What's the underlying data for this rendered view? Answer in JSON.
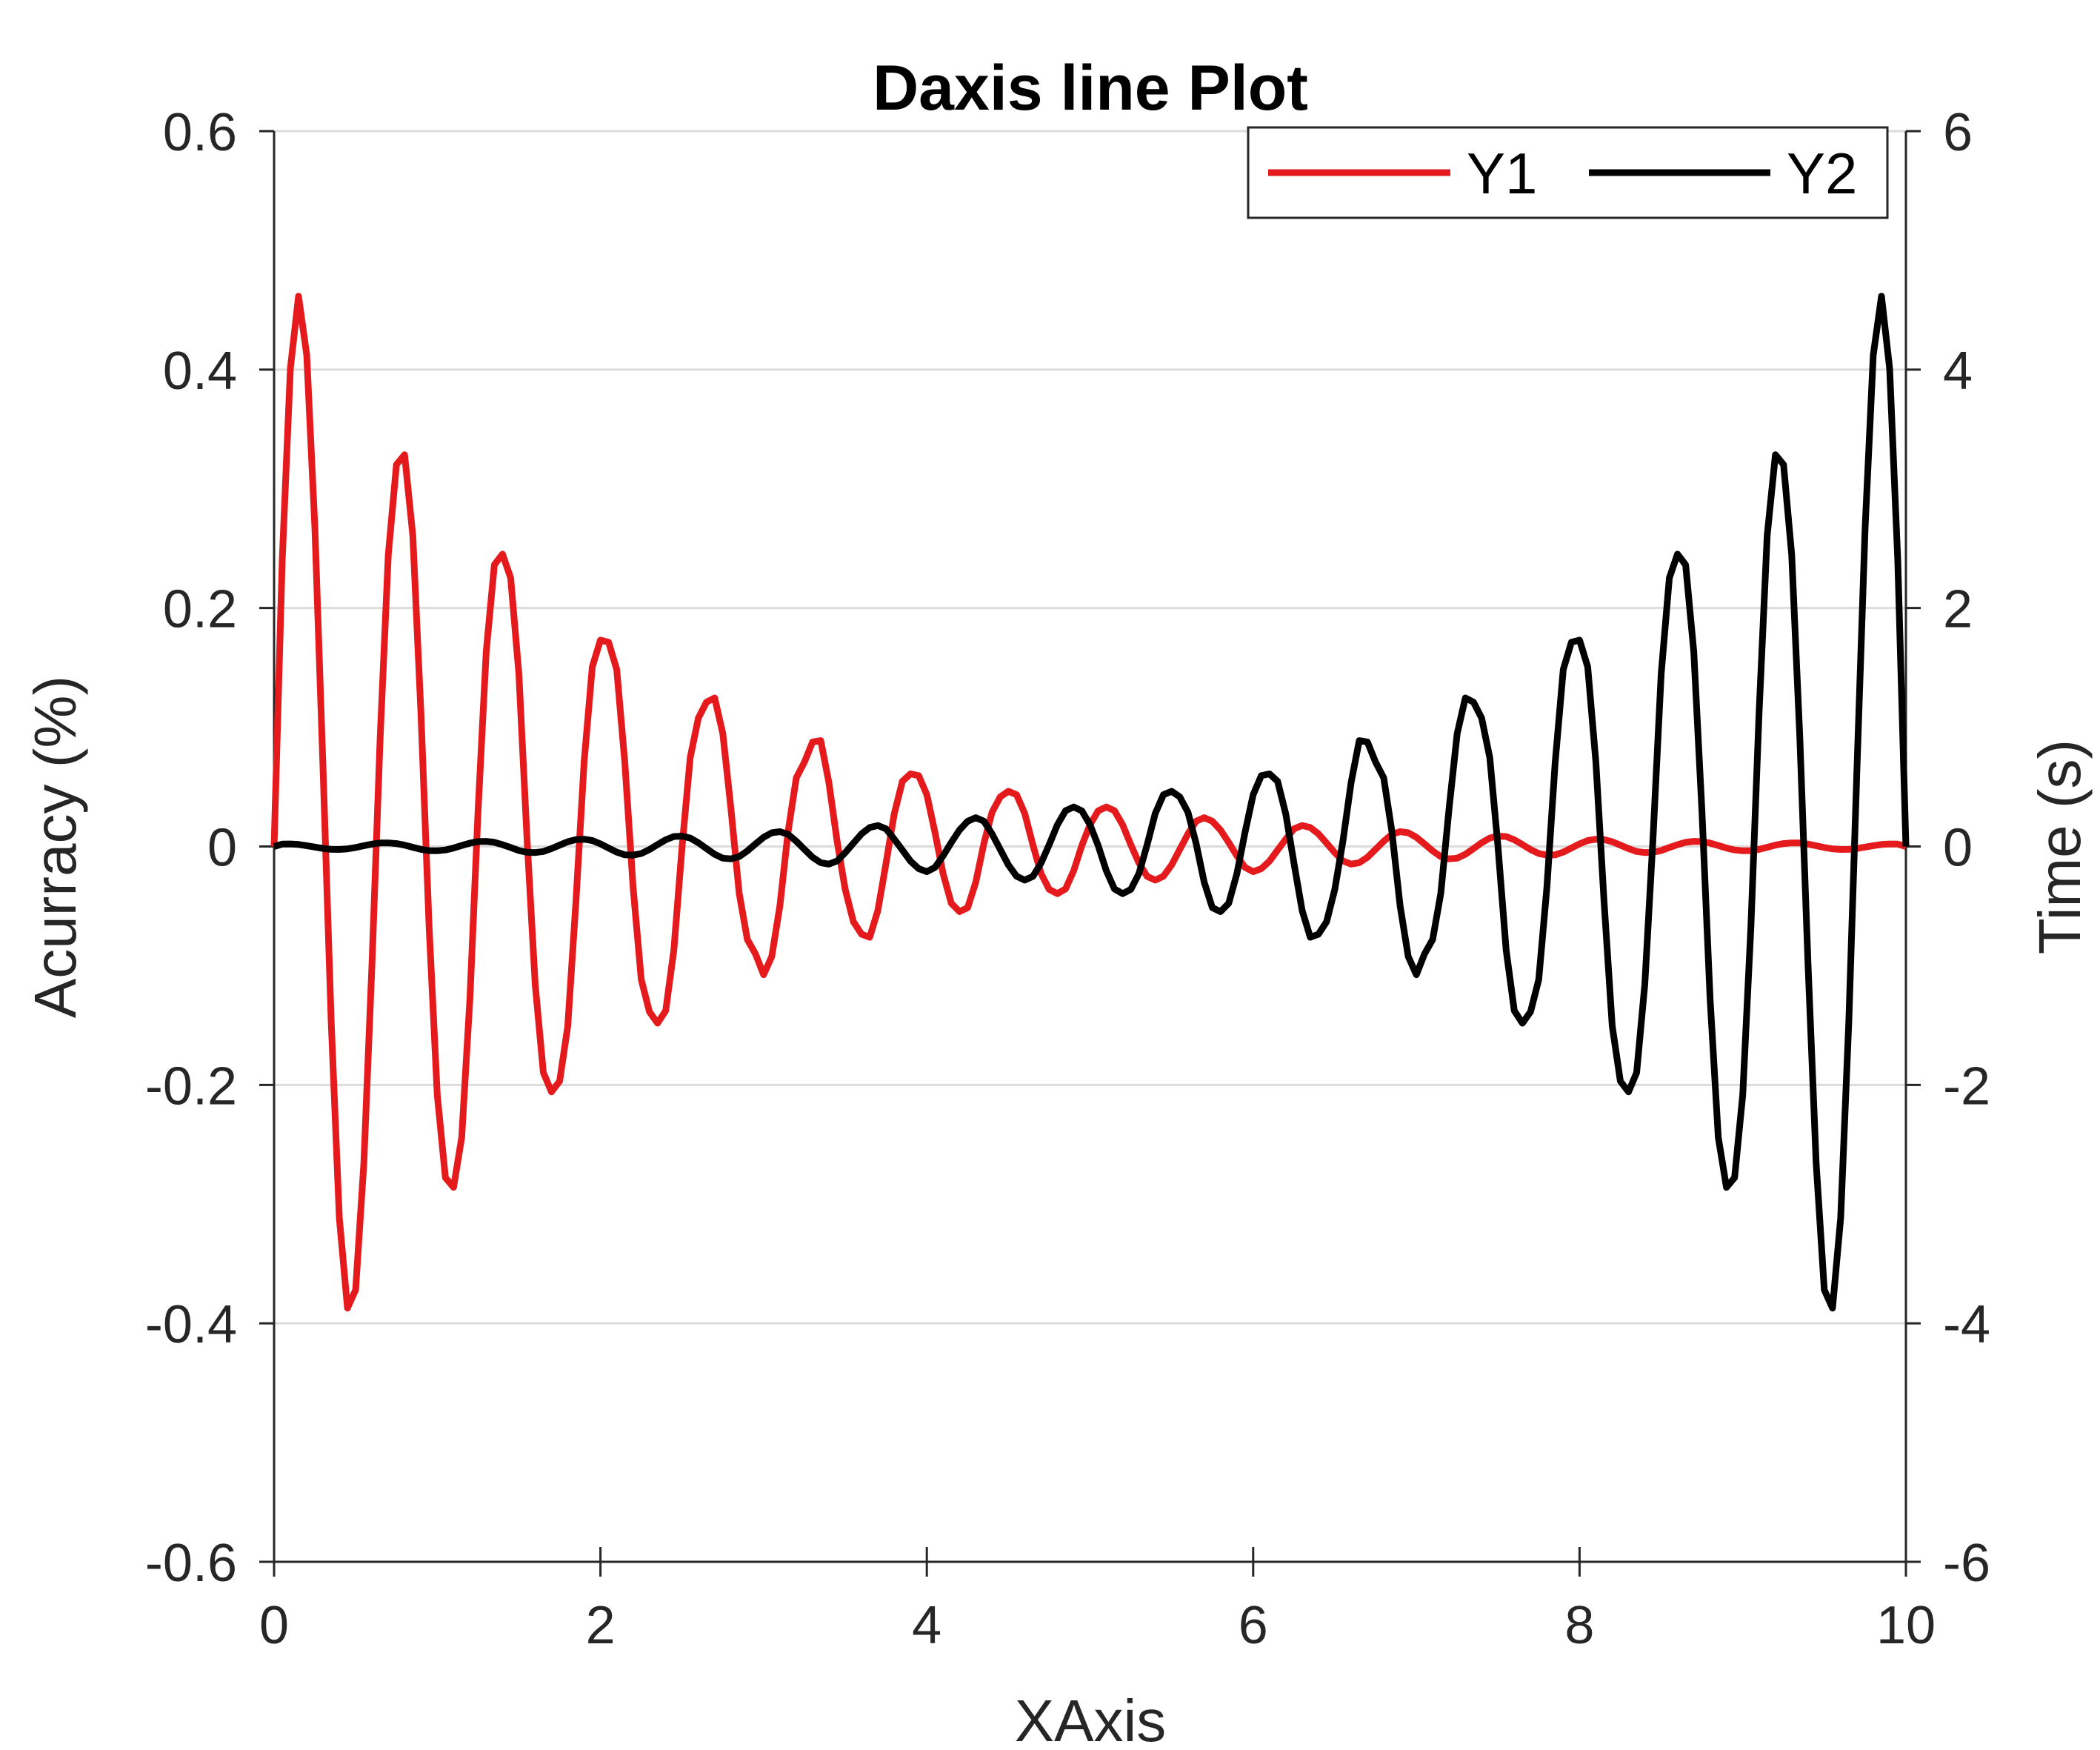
{
  "chart_data": {
    "type": "line",
    "title": "Daxis line Plot",
    "xlabel": "XAxis",
    "ylabel_left": "Acurracy (%)",
    "ylabel_right": "Time (s)",
    "xlim": [
      0,
      10
    ],
    "ylim_left": [
      -0.6,
      0.6
    ],
    "ylim_right": [
      -6,
      6
    ],
    "x_ticks": [
      0,
      2,
      4,
      6,
      8,
      10
    ],
    "x_tick_labels": [
      "0",
      "2",
      "4",
      "6",
      "8",
      "10"
    ],
    "y_left_ticks": [
      0.6,
      0.4,
      0.2,
      0,
      -0.2,
      -0.4,
      -0.6
    ],
    "y_left_tick_labels": [
      "0.6",
      "0.4",
      "0.2",
      "0",
      "-0.2",
      "-0.4",
      "-0.6"
    ],
    "y_right_ticks": [
      6,
      4,
      2,
      0,
      -2,
      -4,
      -6
    ],
    "y_right_tick_labels": [
      "6",
      "4",
      "2",
      "0",
      "-2",
      "-4",
      "-6"
    ],
    "grid": "horizontal",
    "legend_position": "top-right",
    "series": [
      {
        "name": "Y1",
        "axis": "left",
        "color": "#e41a1c",
        "x": [
          0,
          0.05,
          0.1,
          0.15,
          0.2,
          0.25,
          0.3,
          0.35,
          0.4,
          0.45,
          0.5,
          0.55,
          0.6,
          0.65,
          0.7,
          0.75,
          0.8,
          0.85,
          0.9,
          0.95,
          1,
          1.05,
          1.1,
          1.15,
          1.2,
          1.25,
          1.3,
          1.35,
          1.4,
          1.45,
          1.5,
          1.55,
          1.6,
          1.65,
          1.7,
          1.75,
          1.8,
          1.85,
          1.9,
          1.95,
          2,
          2.05,
          2.1,
          2.15,
          2.2,
          2.25,
          2.3,
          2.35,
          2.4,
          2.45,
          2.5,
          2.55,
          2.6,
          2.65,
          2.7,
          2.75,
          2.8,
          2.85,
          2.9,
          2.95,
          3,
          3.05,
          3.1,
          3.15,
          3.2,
          3.25,
          3.3,
          3.35,
          3.4,
          3.45,
          3.5,
          3.55,
          3.6,
          3.65,
          3.7,
          3.75,
          3.8,
          3.85,
          3.9,
          3.95,
          4,
          4.05,
          4.1,
          4.15,
          4.2,
          4.25,
          4.3,
          4.35,
          4.4,
          4.45,
          4.5,
          4.55,
          4.6,
          4.65,
          4.7,
          4.75,
          4.8,
          4.85,
          4.9,
          4.95,
          5,
          5.05,
          5.1,
          5.15,
          5.2,
          5.25,
          5.3,
          5.35,
          5.4,
          5.45,
          5.5,
          5.55,
          5.6,
          5.65,
          5.7,
          5.75,
          5.8,
          5.85,
          5.9,
          5.95,
          6,
          6.05,
          6.1,
          6.15,
          6.2,
          6.25,
          6.3,
          6.35,
          6.4,
          6.45,
          6.5,
          6.55,
          6.6,
          6.65,
          6.7,
          6.75,
          6.8,
          6.85,
          6.9,
          6.95,
          7,
          7.05,
          7.1,
          7.15,
          7.2,
          7.25,
          7.3,
          7.35,
          7.4,
          7.45,
          7.5,
          7.55,
          7.6,
          7.65,
          7.7,
          7.75,
          7.8,
          7.85,
          7.9,
          7.95,
          8,
          8.05,
          8.1,
          8.15,
          8.2,
          8.25,
          8.3,
          8.35,
          8.4,
          8.45,
          8.5,
          8.55,
          8.6,
          8.65,
          8.7,
          8.75,
          8.8,
          8.85,
          8.9,
          8.95,
          9,
          9.05,
          9.1,
          9.15,
          9.2,
          9.25,
          9.3,
          9.35,
          9.4,
          9.45,
          9.5,
          9.55,
          9.6,
          9.65,
          9.7,
          9.75,
          9.8,
          9.85,
          9.9,
          9.95,
          10
        ],
        "y": [
          0,
          0.2398,
          0.4009,
          0.4616,
          0.4122,
          0.2671,
          0.0653,
          -0.1466,
          -0.3116,
          -0.3872,
          -0.3719,
          -0.2656,
          -0.0982,
          0.0909,
          0.2446,
          0.3203,
          0.3286,
          0.2608,
          0.1114,
          -0.0675,
          -0.2083,
          -0.2778,
          -0.2859,
          -0.2441,
          -0.1274,
          0.0299,
          0.1634,
          0.2362,
          0.2452,
          0.2252,
          0.1448,
          0.0062,
          -0.1155,
          -0.1896,
          -0.2058,
          -0.1969,
          -0.1506,
          -0.0454,
          0.0711,
          0.1507,
          0.1731,
          0.1713,
          0.1484,
          0.0698,
          -0.0343,
          -0.1116,
          -0.1386,
          -0.1482,
          -0.1378,
          -0.0869,
          -0.0003,
          0.0746,
          0.1077,
          0.1211,
          0.1246,
          0.0947,
          0.0316,
          -0.0392,
          -0.078,
          -0.0901,
          -0.1076,
          -0.0922,
          -0.0496,
          0.0123,
          0.0576,
          0.0708,
          0.0877,
          0.0888,
          0.0536,
          0.0048,
          -0.0359,
          -0.0631,
          -0.0736,
          -0.0762,
          -0.0537,
          -0.0142,
          0.027,
          0.0546,
          0.0609,
          0.0594,
          0.0435,
          0.0119,
          -0.0228,
          -0.0476,
          -0.0546,
          -0.0514,
          -0.03,
          0.0027,
          0.0288,
          0.0416,
          0.0463,
          0.0434,
          0.0277,
          0.0013,
          -0.0227,
          -0.036,
          -0.0396,
          -0.0356,
          -0.0203,
          0.0008,
          0.0183,
          0.0299,
          0.0331,
          0.03,
          0.0181,
          0.0015,
          -0.0139,
          -0.0251,
          -0.0282,
          -0.025,
          -0.0155,
          -0.0025,
          0.0105,
          0.0212,
          0.0242,
          0.0211,
          0.0138,
          0.0033,
          -0.0078,
          -0.0176,
          -0.0211,
          -0.0186,
          -0.0123,
          -0.003,
          0.0063,
          0.0148,
          0.0176,
          0.0159,
          0.0106,
          0.0028,
          -0.0052,
          -0.0122,
          -0.0148,
          -0.0136,
          -0.0091,
          -0.0024,
          0.0044,
          0.0102,
          0.0124,
          0.0115,
          0.0077,
          0.0021,
          -0.0037,
          -0.0085,
          -0.0104,
          -0.0098,
          -0.0066,
          -0.0018,
          0.0031,
          0.0071,
          0.0087,
          0.0083,
          0.0056,
          0.0016,
          -0.0026,
          -0.0059,
          -0.0073,
          -0.007,
          -0.0047,
          -0.0013,
          0.0022,
          0.005,
          0.0061,
          0.0058,
          0.004,
          0.0011,
          -0.0018,
          -0.0042,
          -0.0051,
          -0.0049,
          -0.0034,
          -0.0009,
          0.0015,
          0.0035,
          0.0043,
          0.0041,
          0.0028,
          0.0008,
          -0.0013,
          -0.0029,
          -0.0036,
          -0.0035,
          -0.0024,
          -0.0007,
          0.0011,
          0.0024,
          0.003,
          0.0029,
          0.002,
          0.0006,
          -0.0009,
          -0.002,
          -0.0025,
          -0.0024,
          -0.0017,
          -0.0005,
          0.0007,
          0.0017,
          0.0021,
          0.002,
          0
        ]
      },
      {
        "name": "Y2",
        "axis": "right",
        "color": "#000000",
        "mirror_of": "Y1",
        "note_values": "mirror of Y1 scaled by 10 on right axis",
        "x": [],
        "y": []
      }
    ]
  },
  "legend": {
    "items": [
      {
        "label": "Y1",
        "color": "#e41a1c"
      },
      {
        "label": "Y2",
        "color": "#000000"
      }
    ]
  }
}
